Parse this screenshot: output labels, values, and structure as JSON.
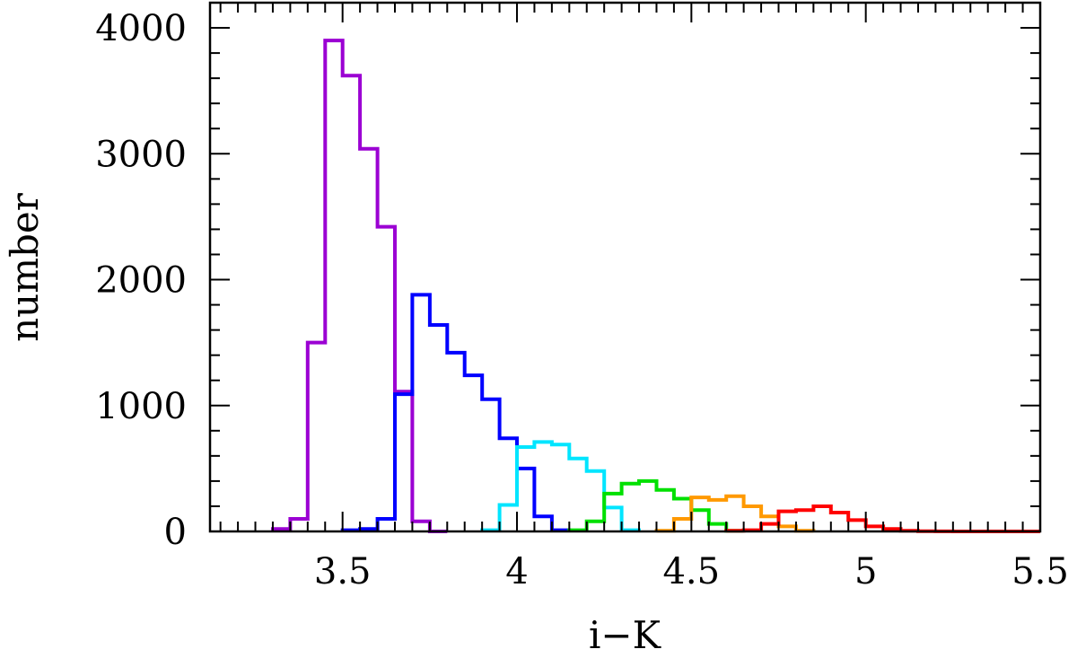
{
  "chart_data": {
    "type": "line",
    "subtype": "step-histogram",
    "title": "",
    "xlabel": "i−K",
    "ylabel": "number",
    "xlim": [
      3.12,
      5.5
    ],
    "ylim": [
      0,
      4200
    ],
    "x_ticks": [
      "3.5",
      "4",
      "4.5",
      "5",
      "5.5"
    ],
    "y_ticks": [
      "0",
      "1000",
      "2000",
      "3000",
      "4000"
    ],
    "bin_width": 0.05,
    "grid": false,
    "legend": "none",
    "series": [
      {
        "color": "#9b00d3",
        "bin_starts": [
          3.3,
          3.35,
          3.4,
          3.45,
          3.5,
          3.55,
          3.6,
          3.65,
          3.7,
          3.75
        ],
        "values": [
          20,
          100,
          1500,
          3900,
          3620,
          3040,
          2420,
          1110,
          80,
          0
        ]
      },
      {
        "color": "#0000ff",
        "bin_starts": [
          3.5,
          3.55,
          3.6,
          3.65,
          3.7,
          3.75,
          3.8,
          3.85,
          3.9,
          3.95,
          4.0,
          4.05,
          4.1
        ],
        "values": [
          10,
          20,
          100,
          1090,
          1880,
          1640,
          1420,
          1240,
          1050,
          740,
          500,
          120,
          10
        ]
      },
      {
        "color": "#00e5ff",
        "bin_starts": [
          3.9,
          3.95,
          4.0,
          4.05,
          4.1,
          4.15,
          4.2,
          4.25,
          4.3
        ],
        "values": [
          10,
          210,
          670,
          710,
          690,
          580,
          480,
          190,
          10
        ]
      },
      {
        "color": "#00e000",
        "bin_starts": [
          4.15,
          4.2,
          4.25,
          4.3,
          4.35,
          4.4,
          4.45,
          4.5,
          4.55,
          4.6
        ],
        "values": [
          10,
          80,
          300,
          380,
          400,
          330,
          260,
          170,
          60,
          5
        ]
      },
      {
        "color": "#ff9900",
        "bin_starts": [
          4.4,
          4.45,
          4.5,
          4.55,
          4.6,
          4.65,
          4.7,
          4.75,
          4.8
        ],
        "values": [
          5,
          100,
          270,
          250,
          280,
          200,
          120,
          40,
          5
        ]
      },
      {
        "color": "#ff0000",
        "bin_starts": [
          4.6,
          4.65,
          4.7,
          4.75,
          4.8,
          4.85,
          4.9,
          4.95,
          5.0,
          5.05,
          5.1,
          5.15,
          5.2,
          5.25,
          5.3,
          5.35,
          5.4,
          5.45
        ],
        "values": [
          5,
          10,
          60,
          160,
          170,
          200,
          150,
          90,
          40,
          20,
          5,
          2,
          1,
          0,
          0,
          0,
          0,
          0
        ]
      }
    ]
  }
}
